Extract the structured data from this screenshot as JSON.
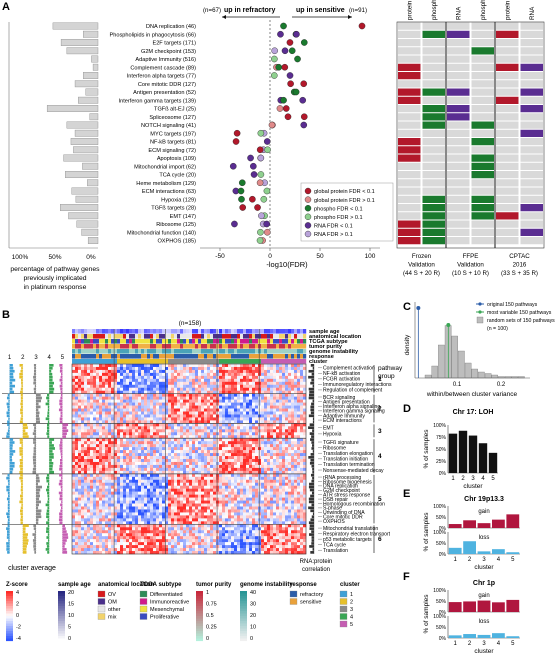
{
  "panels": {
    "a": "A",
    "b": "B",
    "c": "C",
    "d": "D",
    "e": "E",
    "f": "F"
  },
  "panelA": {
    "header_refractory": "(n=67)",
    "label_refractory": "up in refractory",
    "header_sensitive": "(n=91)",
    "label_sensitive": "up in sensitive",
    "left_xlabel": [
      "percentage of pathway genes",
      "previously implicated",
      "in platinum response"
    ],
    "left_ticks": [
      "100%",
      "50%",
      "0%"
    ],
    "dot_xlabel": "-log10(FDR)",
    "dot_ticks": [
      "-50",
      "0",
      "50",
      "100"
    ],
    "pathways": [
      {
        "name": "DNA replication (46)",
        "pct": 0.55
      },
      {
        "name": "Phospholipids in phagocytosis (66)",
        "pct": 0.18
      },
      {
        "name": "E2F targets (171)",
        "pct": 0.45
      },
      {
        "name": "G2M checkpoint (153)",
        "pct": 0.38
      },
      {
        "name": "Adaptive Immunity (516)",
        "pct": 0.08
      },
      {
        "name": "Complement cascade (89)",
        "pct": 0.06
      },
      {
        "name": "Interferon alpha targets (77)",
        "pct": 0.18
      },
      {
        "name": "Core mitotic DDR (127)",
        "pct": 0.28
      },
      {
        "name": "Antigen presentation (52)",
        "pct": 0.15
      },
      {
        "name": "Interferon gamma targets (139)",
        "pct": 0.24
      },
      {
        "name": "TGFß alt-EJ (25)",
        "pct": 0.62
      },
      {
        "name": "Spliceosome (127)",
        "pct": 0.1
      },
      {
        "name": "NOTCH signaling (41)",
        "pct": 0.38
      },
      {
        "name": "MYC targets (197)",
        "pct": 0.28
      },
      {
        "name": "NF-kB targets (81)",
        "pct": 0.33
      },
      {
        "name": "ECM signaling (72)",
        "pct": 0.3
      },
      {
        "name": "Apoptosis (109)",
        "pct": 0.42
      },
      {
        "name": "Mitochondrial import (62)",
        "pct": 0.19
      },
      {
        "name": "TCA cycle (20)",
        "pct": 0.4
      },
      {
        "name": "Heme metabolism (129)",
        "pct": 0.13
      },
      {
        "name": "ECM interactions (63)",
        "pct": 0.32
      },
      {
        "name": "Hypoxia (129)",
        "pct": 0.27
      },
      {
        "name": "TGFß targets (28)",
        "pct": 0.46
      },
      {
        "name": "EMT (147)",
        "pct": 0.36
      },
      {
        "name": "Ribosome (125)",
        "pct": 0.26
      },
      {
        "name": "Mitochondrial function (140)",
        "pct": 0.2
      },
      {
        "name": "OXPHOS (185)",
        "pct": 0.12
      }
    ],
    "legend": [
      {
        "label": "global protein FDR < 0.1",
        "color": "#b2182b",
        "light": false
      },
      {
        "label": "global protein FDR > 0.1",
        "color": "#e08a8a",
        "light": true
      },
      {
        "label": "phospho FDR < 0.1",
        "color": "#1a7a2e",
        "light": false
      },
      {
        "label": "phospho FDR > 0.1",
        "color": "#8fd08f",
        "light": true
      },
      {
        "label": "RNA FDR < 0.1",
        "color": "#5a2d91",
        "light": false
      },
      {
        "label": "RNA FDR > 0.1",
        "color": "#b9a3da",
        "light": true
      }
    ],
    "validation_cols": [
      "protein",
      "phospho",
      "RNA",
      "phospho",
      "protein",
      "RNA"
    ],
    "validation_groups": [
      {
        "name": "Frozen",
        "sub": "Validation",
        "n": "(44 S + 20 R)"
      },
      {
        "name": "FFPE",
        "sub": "Validation",
        "n": "(10 S + 10 R)"
      },
      {
        "name": "CPTAC",
        "sub": "2016",
        "n": "(33 S + 35 R)"
      }
    ]
  },
  "panelB": {
    "n": "(n=158)",
    "track_labels": [
      "sample age",
      "anatomical location",
      "TCGA subtype",
      "tumor purity",
      "genome instability",
      "response",
      "cluster"
    ],
    "cluster_avg_label": "cluster average",
    "cluster_cols": [
      "1",
      "2",
      "3",
      "4",
      "5"
    ],
    "pathway_group_title": [
      "pathway",
      "group"
    ],
    "rna_protein_label": [
      "RNA:protein",
      "correlation"
    ],
    "groups": [
      {
        "num": "1",
        "items": [
          "Complement activation",
          "NF-kB activation",
          "FCGR activation",
          "Immunoregulatory interactions",
          "Regulation of complement"
        ]
      },
      {
        "num": "2",
        "items": [
          "BCR signaling",
          "Antigen presentation",
          "Interferon alpha signaling",
          "Interferon gamma signaling",
          "Adaptive Immunity",
          "ECM interactions"
        ]
      },
      {
        "num": "3",
        "items": [
          "EMT",
          "Hypoxia"
        ]
      },
      {
        "num": "4",
        "items": [
          "TGFß signature",
          "Ribosome",
          "Translation elongation",
          "Translation initiation",
          "Translation termination",
          "Nonsense-mediated decay"
        ]
      },
      {
        "num": "5",
        "items": [
          "rRNA processing",
          "Ribosome biogenesis",
          "DNA replication",
          "G2M checkpoint",
          "ATR stress response",
          "DSB repair",
          "Homologous recombination",
          "S-phase",
          "Unwinding of DNA",
          "Core mitotic DDR",
          "OXPHOS"
        ]
      },
      {
        "num": "6",
        "items": [
          "Mitochondrial translation",
          "Respiratory electron transport",
          "p53 metabolic targets",
          "TCA cycle",
          "Translation"
        ]
      }
    ],
    "legend": {
      "zscore": {
        "title": "Z-score",
        "ticks": [
          "4",
          "2",
          "0",
          "-2",
          "-4"
        ]
      },
      "age": {
        "title": "sample age",
        "ticks": [
          "20",
          "15",
          "10",
          "5",
          "0"
        ]
      },
      "anat": {
        "title": "anatomical location",
        "items": [
          {
            "label": "OV",
            "color": "#d7191c"
          },
          {
            "label": "OM",
            "color": "#4a2f8a"
          },
          {
            "label": "other",
            "color": "#e8e8e8"
          },
          {
            "label": "mix",
            "color": "#f2d36b"
          }
        ]
      },
      "tcga": {
        "title": "TCGA subtype",
        "items": [
          {
            "label": "Differentiated",
            "color": "#2e8b57"
          },
          {
            "label": "Immunoreactive",
            "color": "#d01c8b"
          },
          {
            "label": "Mesenchymal",
            "color": "#f0e442"
          },
          {
            "label": "Proliferative",
            "color": "#3b4cc0"
          }
        ]
      },
      "purity": {
        "title": "tumor purity",
        "ticks": [
          "1",
          "0.75",
          "0.5",
          "0.25",
          "0"
        ]
      },
      "genome": {
        "title": "genome instability",
        "ticks": [
          "40",
          "30",
          "20",
          "10",
          "0"
        ]
      },
      "response": {
        "title": "response",
        "items": [
          {
            "label": "refractory",
            "color": "#2b5ca8"
          },
          {
            "label": "sensitive",
            "color": "#e9a13b"
          }
        ]
      },
      "cluster": {
        "title": "cluster",
        "items": [
          {
            "label": "1",
            "color": "#3fa0d6"
          },
          {
            "label": "2",
            "color": "#e6c02b"
          },
          {
            "label": "3",
            "color": "#8a8a8a"
          },
          {
            "label": "4",
            "color": "#3aa655"
          },
          {
            "label": "5",
            "color": "#c55db2"
          }
        ]
      }
    }
  },
  "panelC": {
    "legend": [
      "original 150 pathways",
      "most variable 150 pathways",
      "random sets of 150 pathways",
      "(n = 100)"
    ],
    "xlabel": "within/between cluster variance",
    "ylabel": "density",
    "xticks": [
      "0.1",
      "0.2"
    ]
  },
  "panelD": {
    "title": "Chr 17: LOH",
    "ylabel": "% of samples",
    "xlabel": "cluster",
    "yticks": [
      "100%",
      "75%",
      "50%",
      "25%",
      "0%"
    ],
    "categories": [
      "1",
      "2",
      "3",
      "4",
      "5"
    ]
  },
  "panelE": {
    "title": "Chr 19p13.3",
    "gain": "gain",
    "loss": "loss",
    "ylabel": "% of samples",
    "xlabel": "cluster",
    "yticks": [
      "100%",
      "50%",
      "0%"
    ],
    "categories": [
      "1",
      "2",
      "3",
      "4",
      "5"
    ]
  },
  "panelF": {
    "title": "Chr 1p",
    "gain": "gain",
    "loss": "loss",
    "ylabel": "% of samples",
    "xlabel": "cluster",
    "yticks": [
      "100%",
      "50%",
      "0%"
    ],
    "categories": [
      "1",
      "2",
      "3",
      "4",
      "5"
    ]
  },
  "chart_data": [
    {
      "type": "bar",
      "title": "Chr 17: LOH",
      "xlabel": "cluster",
      "ylabel": "% of samples",
      "ylim": [
        0,
        100
      ],
      "categories": [
        "1",
        "2",
        "3",
        "4",
        "5"
      ],
      "values": [
        82,
        88,
        78,
        62,
        42
      ],
      "color": "#111111"
    },
    {
      "type": "bar",
      "title": "Chr 19p13.3",
      "xlabel": "cluster",
      "ylabel": "% of samples",
      "ylim": [
        0,
        100
      ],
      "categories": [
        "1",
        "2",
        "3",
        "4",
        "5"
      ],
      "series": [
        {
          "name": "gain",
          "values": [
            18,
            35,
            22,
            38,
            62
          ],
          "color": "#b0163e"
        },
        {
          "name": "loss",
          "values": [
            28,
            58,
            12,
            22,
            8
          ],
          "color": "#4fb3e0"
        }
      ]
    },
    {
      "type": "bar",
      "title": "Chr 1p",
      "xlabel": "cluster",
      "ylabel": "% of samples",
      "ylim": [
        0,
        100
      ],
      "categories": [
        "1",
        "2",
        "3",
        "4",
        "5"
      ],
      "series": [
        {
          "name": "gain",
          "values": [
            45,
            48,
            52,
            44,
            55
          ],
          "color": "#b0163e"
        },
        {
          "name": "loss",
          "values": [
            12,
            18,
            14,
            22,
            8
          ],
          "color": "#4fb3e0"
        }
      ]
    },
    {
      "type": "bar",
      "title": "",
      "xlabel": "within/between cluster variance",
      "ylabel": "density",
      "categories": [
        "0.08",
        "0.09",
        "0.10",
        "0.11",
        "0.12",
        "0.13",
        "0.14",
        "0.15",
        "0.16",
        "0.17",
        "0.18",
        "0.19",
        "0.20",
        "0.21",
        "0.22"
      ],
      "values": [
        2,
        8,
        22,
        35,
        28,
        18,
        10,
        6,
        4,
        3,
        2,
        1,
        1,
        1,
        1
      ],
      "markers": {
        "original": 0.065,
        "most_variable": 0.11
      }
    }
  ]
}
